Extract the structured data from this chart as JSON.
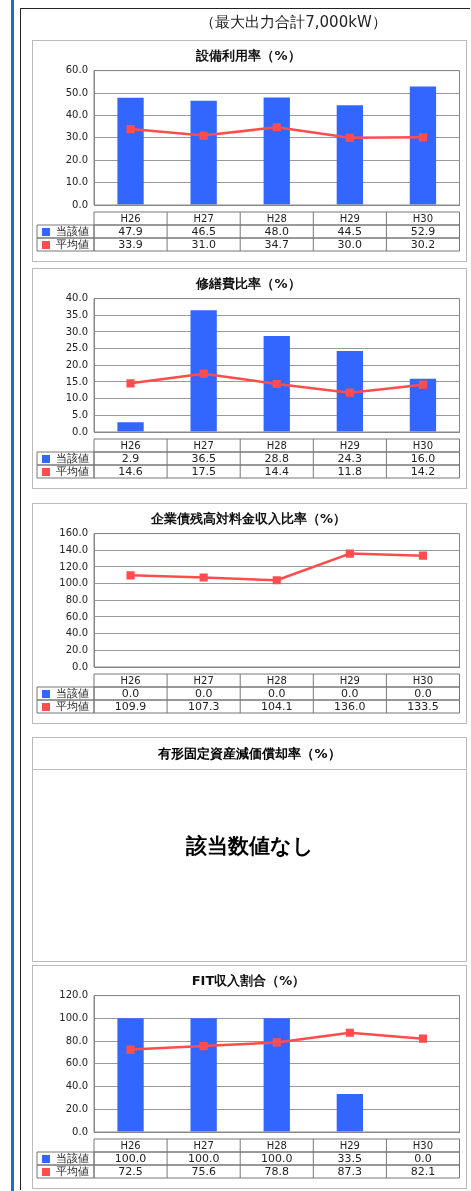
{
  "chart_data": [
    {
      "type": "bar",
      "subtitle": "（最大出力合計7,000kW）",
      "title": "設備利用率（%）",
      "categories": [
        "H26",
        "H27",
        "H28",
        "H29",
        "H30"
      ],
      "series": [
        {
          "name": "当該値",
          "color": "#3366ff",
          "values": [
            47.9,
            46.5,
            48.0,
            44.5,
            52.9
          ],
          "value_labels": [
            "47.9",
            "46.5",
            "48.0",
            "44.5",
            "52.9"
          ]
        },
        {
          "name": "平均値",
          "type": "line",
          "color": "#ff4d4d",
          "values": [
            33.9,
            31.0,
            34.7,
            30.0,
            30.2
          ],
          "value_labels": [
            "33.9",
            "31.0",
            "34.7",
            "30.0",
            "30.2"
          ]
        }
      ],
      "ylim": [
        0,
        60
      ],
      "yticks": [
        {
          "value": 0,
          "label": "0.0"
        },
        {
          "value": 10,
          "label": "10.0"
        },
        {
          "value": 20,
          "label": "20.0"
        },
        {
          "value": 30,
          "label": "30.0"
        },
        {
          "value": 40,
          "label": "40.0"
        },
        {
          "value": 50,
          "label": "50.0"
        },
        {
          "value": 60,
          "label": "60.0"
        }
      ],
      "grid": "y",
      "legend": "bottom left",
      "marker": "square"
    },
    {
      "type": "bar",
      "title": "修繕費比率（%）",
      "categories": [
        "H26",
        "H27",
        "H28",
        "H29",
        "H30"
      ],
      "series": [
        {
          "name": "当該値",
          "color": "#3366ff",
          "values": [
            2.9,
            36.5,
            28.8,
            24.3,
            16.0
          ],
          "value_labels": [
            "2.9",
            "36.5",
            "28.8",
            "24.3",
            "16.0"
          ]
        },
        {
          "name": "平均値",
          "type": "line",
          "color": "#ff4d4d",
          "values": [
            14.6,
            17.5,
            14.4,
            11.8,
            14.2
          ],
          "value_labels": [
            "14.6",
            "17.5",
            "14.4",
            "11.8",
            "14.2"
          ]
        }
      ],
      "ylim": [
        0,
        40
      ],
      "yticks": [
        {
          "value": 0,
          "label": "0.0"
        },
        {
          "value": 5,
          "label": "5.0"
        },
        {
          "value": 10,
          "label": "10.0"
        },
        {
          "value": 15,
          "label": "15.0"
        },
        {
          "value": 20,
          "label": "20.0"
        },
        {
          "value": 25,
          "label": "25.0"
        },
        {
          "value": 30,
          "label": "30.0"
        },
        {
          "value": 35,
          "label": "35.0"
        },
        {
          "value": 40,
          "label": "40.0"
        }
      ],
      "grid": "y",
      "legend": "bottom left",
      "marker": "square"
    },
    {
      "type": "bar",
      "title": "企業債残高対料金収入比率（%）",
      "categories": [
        "H26",
        "H27",
        "H28",
        "H29",
        "H30"
      ],
      "series": [
        {
          "name": "当該値",
          "color": "#3366ff",
          "values": [
            0.0,
            0.0,
            0.0,
            0.0,
            0.0
          ],
          "value_labels": [
            "0.0",
            "0.0",
            "0.0",
            "0.0",
            "0.0"
          ]
        },
        {
          "name": "平均値",
          "type": "line",
          "color": "#ff4d4d",
          "values": [
            109.9,
            107.3,
            104.1,
            136.0,
            133.5
          ],
          "value_labels": [
            "109.9",
            "107.3",
            "104.1",
            "136.0",
            "133.5"
          ]
        }
      ],
      "ylim": [
        0,
        160
      ],
      "yticks": [
        {
          "value": 0,
          "label": "0.0"
        },
        {
          "value": 20,
          "label": "20.0"
        },
        {
          "value": 40,
          "label": "40.0"
        },
        {
          "value": 60,
          "label": "60.0"
        },
        {
          "value": 80,
          "label": "80.0"
        },
        {
          "value": 100,
          "label": "100.0"
        },
        {
          "value": 120,
          "label": "120.0"
        },
        {
          "value": 140,
          "label": "140.0"
        },
        {
          "value": 160,
          "label": "160.0"
        }
      ],
      "grid": "y",
      "legend": "bottom left",
      "marker": "square"
    },
    {
      "type": "other",
      "title": "有形固定資産減価償却率（%）",
      "annotations": [
        "該当数値なし"
      ]
    },
    {
      "type": "bar",
      "title": "FIT収入割合（%）",
      "categories": [
        "H26",
        "H27",
        "H28",
        "H29",
        "H30"
      ],
      "series": [
        {
          "name": "当該値",
          "color": "#3366ff",
          "values": [
            100.0,
            100.0,
            100.0,
            33.5,
            0.0
          ],
          "value_labels": [
            "100.0",
            "100.0",
            "100.0",
            "33.5",
            "0.0"
          ]
        },
        {
          "name": "平均値",
          "type": "line",
          "color": "#ff4d4d",
          "values": [
            72.5,
            75.6,
            78.8,
            87.3,
            82.1
          ],
          "value_labels": [
            "72.5",
            "75.6",
            "78.8",
            "87.3",
            "82.1"
          ]
        }
      ],
      "ylim": [
        0,
        120
      ],
      "yticks": [
        {
          "value": 0,
          "label": "0.0"
        },
        {
          "value": 20,
          "label": "20.0"
        },
        {
          "value": 40,
          "label": "40.0"
        },
        {
          "value": 60,
          "label": "60.0"
        },
        {
          "value": 80,
          "label": "80.0"
        },
        {
          "value": 100,
          "label": "100.0"
        },
        {
          "value": 120,
          "label": "120.0"
        }
      ],
      "grid": "y",
      "legend": "bottom left",
      "marker": "square"
    }
  ]
}
